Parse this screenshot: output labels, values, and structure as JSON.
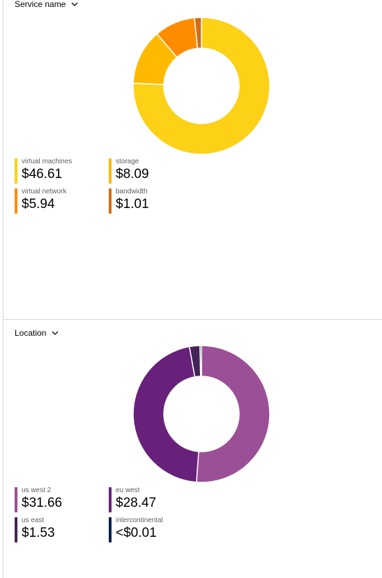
{
  "panels": [
    {
      "selector_label": "Service name",
      "chart_data": {
        "type": "pie",
        "donut": true,
        "categories": [
          "virtual machines",
          "storage",
          "virtual network",
          "bandwidth"
        ],
        "values": [
          46.61,
          8.09,
          5.94,
          1.01
        ],
        "display_values": [
          "$46.61",
          "$8.09",
          "$5.94",
          "$1.01"
        ],
        "colors": [
          "#fcd116",
          "#ffb900",
          "#ff8c00",
          "#d66d0f"
        ]
      }
    },
    {
      "selector_label": "Location",
      "chart_data": {
        "type": "pie",
        "donut": true,
        "categories": [
          "us west 2",
          "eu west",
          "us east",
          "intercontinental"
        ],
        "values": [
          31.66,
          28.47,
          1.53,
          0.005
        ],
        "display_values": [
          "$31.66",
          "$28.47",
          "$1.53",
          "<$0.01"
        ],
        "colors": [
          "#9b4f96",
          "#68217a",
          "#442359",
          "#002050"
        ]
      }
    }
  ]
}
